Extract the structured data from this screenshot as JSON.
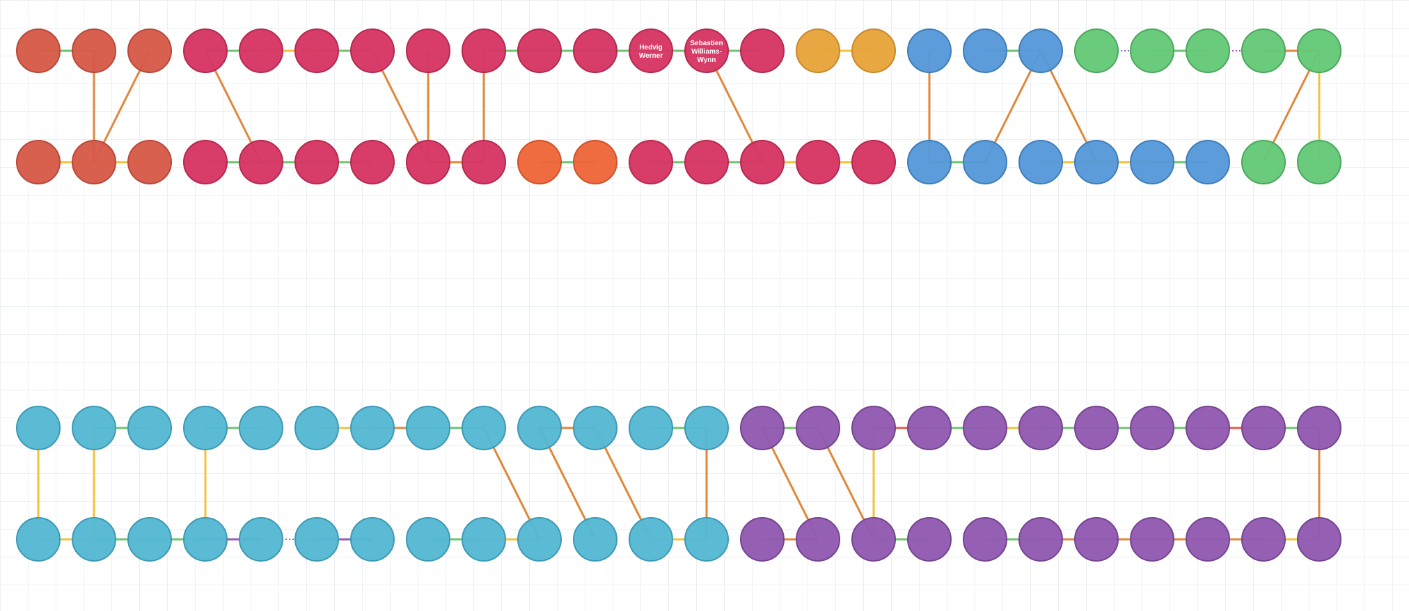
{
  "palette": {
    "node_fill": {
      "brick": "#d65a48",
      "crimson": "#d63563",
      "amber": "#e8a33a",
      "orange": "#ee6538",
      "blue": "#5598d8",
      "green": "#65c977",
      "teal": "#54b8d3",
      "purple": "#9159b1"
    },
    "node_stroke": {
      "brick": "#b8483a",
      "crimson": "#b3294f",
      "amber": "#c9882a",
      "orange": "#cf522a",
      "blue": "#3f7db8",
      "green": "#4aa75c",
      "teal": "#3c99b4",
      "purple": "#74448f"
    },
    "edge": {
      "green": "#6cc46e",
      "yellow": "#f2c23c",
      "orange": "#e0873a",
      "purple": "#9b59b6",
      "red": "#e05a4e"
    }
  },
  "groups": [
    {
      "name": "band-1",
      "columns": 24,
      "rows": [
        [
          "brick",
          "brick",
          "brick",
          "crimson",
          "crimson",
          "crimson",
          "crimson",
          "crimson",
          "crimson",
          "crimson",
          "crimson",
          "crimson",
          "crimson",
          "crimson",
          "amber",
          "amber",
          "blue",
          "blue",
          "blue",
          "green",
          "green",
          "green",
          "green",
          "green"
        ],
        [
          "brick",
          "brick",
          "brick",
          "crimson",
          "crimson",
          "crimson",
          "crimson",
          "crimson",
          "crimson",
          "orange",
          "orange",
          "crimson",
          "crimson",
          "crimson",
          "crimson",
          "crimson",
          "blue",
          "blue",
          "blue",
          "blue",
          "blue",
          "blue",
          "green",
          "green"
        ]
      ],
      "labels": [
        {
          "row": 0,
          "col": 11,
          "lines": [
            "Hedvig",
            "Werner"
          ]
        },
        {
          "row": 0,
          "col": 12,
          "lines": [
            "Sebastien",
            "Williams-",
            "Wynn"
          ]
        }
      ],
      "edges": [
        {
          "kind": "h",
          "row": 0,
          "from": 0,
          "to": 1,
          "color": "green"
        },
        {
          "kind": "elbow",
          "from": [
            0,
            1
          ],
          "to": [
            1,
            1
          ],
          "color": "orange"
        },
        {
          "kind": "h",
          "row": 1,
          "from": 0,
          "to": 2,
          "color": "yellow"
        },
        {
          "kind": "diag",
          "from": [
            0,
            2
          ],
          "to": [
            1,
            1
          ],
          "color": "orange"
        },
        {
          "kind": "h",
          "row": 0,
          "from": 3,
          "to": 4,
          "color": "green"
        },
        {
          "kind": "h",
          "row": 0,
          "from": 4,
          "to": 5,
          "color": "yellow"
        },
        {
          "kind": "h",
          "row": 0,
          "from": 5,
          "to": 6,
          "color": "green"
        },
        {
          "kind": "diag",
          "from": [
            0,
            3
          ],
          "to": [
            1,
            4
          ],
          "color": "orange"
        },
        {
          "kind": "h",
          "row": 1,
          "from": 3,
          "to": 6,
          "color": "green"
        },
        {
          "kind": "diag",
          "from": [
            0,
            6
          ],
          "to": [
            1,
            7
          ],
          "color": "orange"
        },
        {
          "kind": "elbow",
          "from": [
            0,
            7
          ],
          "to": [
            1,
            7
          ],
          "color": "orange"
        },
        {
          "kind": "h",
          "row": 1,
          "from": 7,
          "to": 8,
          "color": "orange"
        },
        {
          "kind": "elbow",
          "from": [
            1,
            8
          ],
          "to": [
            0,
            8
          ],
          "color": "orange"
        },
        {
          "kind": "h",
          "row": 0,
          "from": 8,
          "to": 13,
          "color": "green"
        },
        {
          "kind": "h",
          "row": 1,
          "from": 9,
          "to": 10,
          "color": "green"
        },
        {
          "kind": "diag",
          "from": [
            0,
            12
          ],
          "to": [
            1,
            13
          ],
          "color": "orange"
        },
        {
          "kind": "h",
          "row": 1,
          "from": 11,
          "to": 13,
          "color": "green"
        },
        {
          "kind": "h",
          "row": 1,
          "from": 13,
          "to": 15,
          "color": "yellow"
        },
        {
          "kind": "h",
          "row": 0,
          "from": 14,
          "to": 15,
          "color": "yellow"
        },
        {
          "kind": "elbow",
          "from": [
            0,
            16
          ],
          "to": [
            1,
            16
          ],
          "color": "orange"
        },
        {
          "kind": "h",
          "row": 1,
          "from": 16,
          "to": 17,
          "color": "green"
        },
        {
          "kind": "diag",
          "from": [
            1,
            17
          ],
          "to": [
            0,
            18
          ],
          "color": "orange"
        },
        {
          "kind": "h",
          "row": 0,
          "from": 17,
          "to": 18,
          "color": "green"
        },
        {
          "kind": "diag",
          "from": [
            0,
            18
          ],
          "to": [
            1,
            19
          ],
          "color": "orange"
        },
        {
          "kind": "h",
          "row": 1,
          "from": 18,
          "to": 20,
          "color": "yellow"
        },
        {
          "kind": "h",
          "row": 1,
          "from": 20,
          "to": 21,
          "color": "green"
        },
        {
          "kind": "h",
          "row": 0,
          "from": 19,
          "to": 20,
          "color": "purple",
          "dotted": true
        },
        {
          "kind": "h",
          "row": 0,
          "from": 20,
          "to": 21,
          "color": "green"
        },
        {
          "kind": "h",
          "row": 0,
          "from": 21,
          "to": 22,
          "color": "purple",
          "dotted": true
        },
        {
          "kind": "h",
          "row": 0,
          "from": 22,
          "to": 23,
          "color": "orange"
        },
        {
          "kind": "diag",
          "from": [
            0,
            23
          ],
          "to": [
            1,
            22
          ],
          "color": "orange"
        },
        {
          "kind": "elbow",
          "from": [
            0,
            23
          ],
          "to": [
            1,
            23
          ],
          "color": "yellow"
        }
      ]
    },
    {
      "name": "band-2",
      "columns": 24,
      "rows": [
        [
          "teal",
          "teal",
          "teal",
          "teal",
          "teal",
          "teal",
          "teal",
          "teal",
          "teal",
          "teal",
          "teal",
          "teal",
          "teal",
          "purple",
          "purple",
          "purple",
          "purple",
          "purple",
          "purple",
          "purple",
          "purple",
          "purple",
          "purple",
          "purple"
        ],
        [
          "teal",
          "teal",
          "teal",
          "teal",
          "teal",
          "teal",
          "teal",
          "teal",
          "teal",
          "teal",
          "teal",
          "teal",
          "teal",
          "purple",
          "purple",
          "purple",
          "purple",
          "purple",
          "purple",
          "purple",
          "purple",
          "purple",
          "purple",
          "purple"
        ]
      ],
      "labels": [],
      "edges": [
        {
          "kind": "elbow",
          "from": [
            0,
            0
          ],
          "to": [
            1,
            0
          ],
          "color": "yellow"
        },
        {
          "kind": "h",
          "row": 1,
          "from": 0,
          "to": 1,
          "color": "yellow"
        },
        {
          "kind": "elbow",
          "from": [
            1,
            1
          ],
          "to": [
            0,
            1
          ],
          "color": "yellow"
        },
        {
          "kind": "h",
          "row": 0,
          "from": 1,
          "to": 2,
          "color": "green"
        },
        {
          "kind": "h",
          "row": 1,
          "from": 1,
          "to": 3,
          "color": "green"
        },
        {
          "kind": "elbow",
          "from": [
            1,
            3
          ],
          "to": [
            0,
            3
          ],
          "color": "yellow"
        },
        {
          "kind": "h",
          "row": 0,
          "from": 3,
          "to": 4,
          "color": "green"
        },
        {
          "kind": "h",
          "row": 1,
          "from": 3,
          "to": 4,
          "color": "purple"
        },
        {
          "kind": "h",
          "row": 1,
          "from": 4,
          "to": 5,
          "color": "purple",
          "dotted": true
        },
        {
          "kind": "h",
          "row": 1,
          "from": 5,
          "to": 6,
          "color": "purple"
        },
        {
          "kind": "h",
          "row": 0,
          "from": 5,
          "to": 6,
          "color": "yellow"
        },
        {
          "kind": "h",
          "row": 0,
          "from": 6,
          "to": 7,
          "color": "orange"
        },
        {
          "kind": "h",
          "row": 0,
          "from": 7,
          "to": 8,
          "color": "green"
        },
        {
          "kind": "diag",
          "from": [
            0,
            8
          ],
          "to": [
            1,
            9
          ],
          "color": "orange"
        },
        {
          "kind": "h",
          "row": 1,
          "from": 7,
          "to": 8,
          "color": "green"
        },
        {
          "kind": "h",
          "row": 1,
          "from": 8,
          "to": 9,
          "color": "yellow"
        },
        {
          "kind": "h",
          "row": 0,
          "from": 9,
          "to": 10,
          "color": "orange"
        },
        {
          "kind": "diag",
          "from": [
            0,
            9
          ],
          "to": [
            1,
            10
          ],
          "color": "orange"
        },
        {
          "kind": "diag",
          "from": [
            0,
            10
          ],
          "to": [
            1,
            11
          ],
          "color": "orange"
        },
        {
          "kind": "h",
          "row": 0,
          "from": 11,
          "to": 12,
          "color": "green"
        },
        {
          "kind": "elbow",
          "from": [
            0,
            12
          ],
          "to": [
            1,
            12
          ],
          "color": "orange"
        },
        {
          "kind": "h",
          "row": 1,
          "from": 11,
          "to": 12,
          "color": "yellow"
        },
        {
          "kind": "h",
          "row": 0,
          "from": 13,
          "to": 14,
          "color": "green"
        },
        {
          "kind": "diag",
          "from": [
            0,
            13
          ],
          "to": [
            1,
            14
          ],
          "color": "orange"
        },
        {
          "kind": "diag",
          "from": [
            0,
            14
          ],
          "to": [
            1,
            15
          ],
          "color": "orange"
        },
        {
          "kind": "h",
          "row": 1,
          "from": 13,
          "to": 14,
          "color": "orange"
        },
        {
          "kind": "elbow",
          "from": [
            1,
            15
          ],
          "to": [
            0,
            15
          ],
          "color": "yellow"
        },
        {
          "kind": "h",
          "row": 0,
          "from": 15,
          "to": 16,
          "color": "red"
        },
        {
          "kind": "h",
          "row": 0,
          "from": 16,
          "to": 17,
          "color": "green"
        },
        {
          "kind": "h",
          "row": 0,
          "from": 17,
          "to": 18,
          "color": "yellow"
        },
        {
          "kind": "h",
          "row": 0,
          "from": 18,
          "to": 21,
          "color": "green"
        },
        {
          "kind": "h",
          "row": 0,
          "from": 21,
          "to": 22,
          "color": "red"
        },
        {
          "kind": "h",
          "row": 0,
          "from": 22,
          "to": 23,
          "color": "green"
        },
        {
          "kind": "elbow",
          "from": [
            0,
            23
          ],
          "to": [
            1,
            23
          ],
          "color": "orange"
        },
        {
          "kind": "h",
          "row": 1,
          "from": 15,
          "to": 16,
          "color": "green"
        },
        {
          "kind": "h",
          "row": 1,
          "from": 17,
          "to": 18,
          "color": "green"
        },
        {
          "kind": "h",
          "row": 1,
          "from": 18,
          "to": 22,
          "color": "orange"
        },
        {
          "kind": "h",
          "row": 1,
          "from": 22,
          "to": 23,
          "color": "yellow"
        }
      ]
    }
  ]
}
